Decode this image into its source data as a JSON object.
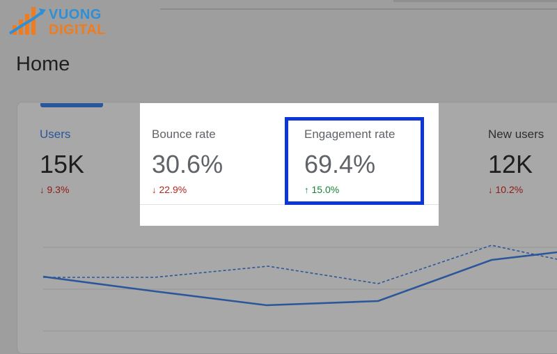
{
  "logo": {
    "line1": "VUONG",
    "line2": "DIGITAL"
  },
  "page": {
    "title": "Home"
  },
  "metrics": {
    "users": {
      "label": "Users",
      "value": "15K",
      "change": "9.3%",
      "direction": "down"
    },
    "bounce_rate": {
      "label": "Bounce rate",
      "value": "30.6%",
      "change": "22.9%",
      "direction": "down"
    },
    "engagement_rate": {
      "label": "Engagement rate",
      "value": "69.4%",
      "change": "15.0%",
      "direction": "up"
    },
    "new_users": {
      "label": "New users",
      "value": "12K",
      "change": "10.2%",
      "direction": "down"
    }
  },
  "glyphs": {
    "down": "↓",
    "up": "↑"
  },
  "colors": {
    "accent_blue": "#2b5699",
    "down_red": "#b3261e",
    "up_green": "#188038",
    "highlight_frame": "#0d36d9"
  }
}
